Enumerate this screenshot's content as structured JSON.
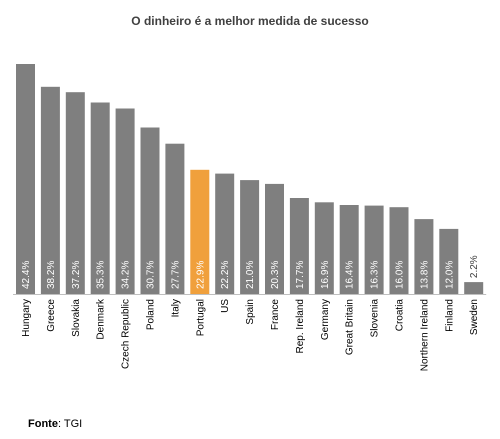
{
  "chart_data": {
    "type": "bar",
    "title": "O dinheiro é a melhor medida de sucesso",
    "categories": [
      "Hungary",
      "Greece",
      "Slovakia",
      "Denmark",
      "Czech Republic",
      "Poland",
      "Italy",
      "Portugal",
      "US",
      "Spain",
      "France",
      "Rep. Ireland",
      "Germany",
      "Great Britain",
      "Slovenia",
      "Croatia",
      "Northern Ireland",
      "Finland",
      "Sweden"
    ],
    "values": [
      42.4,
      38.2,
      37.2,
      35.3,
      34.2,
      30.7,
      27.7,
      22.9,
      22.2,
      21.0,
      20.3,
      17.7,
      16.9,
      16.4,
      16.3,
      16.0,
      13.8,
      12.0,
      2.2
    ],
    "value_labels": [
      "42.4%",
      "38.2%",
      "37.2%",
      "35.3%",
      "34.2%",
      "30.7%",
      "27.7%",
      "22.9%",
      "22.2%",
      "21.0%",
      "20.3%",
      "17.7%",
      "16.9%",
      "16.4%",
      "16.3%",
      "16.0%",
      "13.8%",
      "12.0%",
      "2.2%"
    ],
    "highlight": "Portugal",
    "colors": {
      "bar": "#7f7f7f",
      "highlight": "#f0a03c",
      "label_inside": "#ffffff",
      "label_outside": "#404040",
      "axis": "#bfbfbf"
    },
    "xlabel": "",
    "ylabel": "",
    "grid": false,
    "legend": "none"
  },
  "source": {
    "key": "Fonte",
    "value": "TGI"
  }
}
